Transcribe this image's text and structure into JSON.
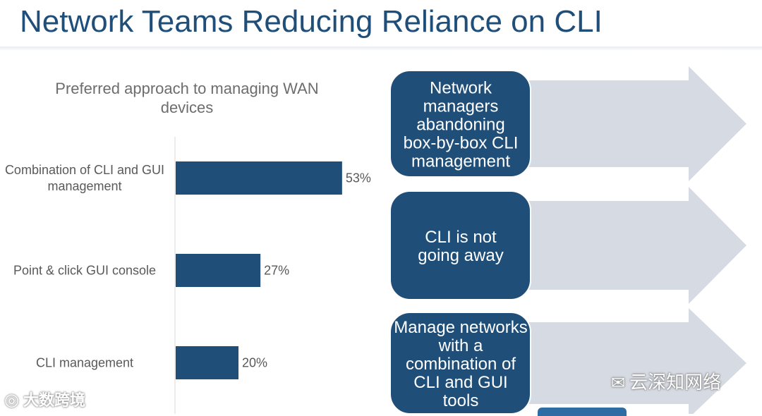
{
  "slide": {
    "title": "Network Teams Reducing Reliance on CLI"
  },
  "chart_data": {
    "type": "bar",
    "orientation": "horizontal",
    "title": "Preferred approach to managing WAN devices",
    "categories": [
      "Combination of CLI and GUI management",
      "Point & click GUI console",
      "CLI management"
    ],
    "values": [
      53,
      27,
      20
    ],
    "data_labels": [
      "53%",
      "27%",
      "20%"
    ],
    "xlim": [
      0,
      100
    ],
    "grid": false,
    "bar_color": "#1f4e79"
  },
  "callouts": [
    {
      "text": "Network managers abandoning box-by-box CLI management"
    },
    {
      "text": "CLI is not going away"
    },
    {
      "text": "Manage networks with a combination of CLI and GUI tools"
    }
  ],
  "colors": {
    "accent": "#1f4e79",
    "arrow": "#d6dae2",
    "callout_border": "#ffffff"
  },
  "watermarks": {
    "left": "大数跨境",
    "right": "云深知网络"
  }
}
